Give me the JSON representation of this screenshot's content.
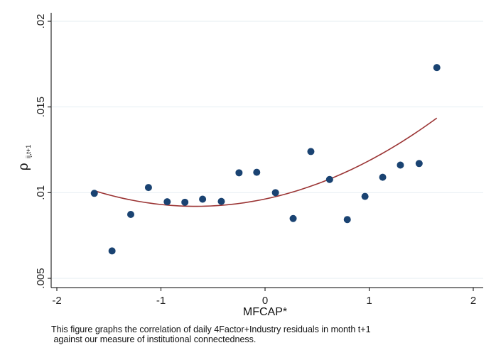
{
  "chart_data": {
    "type": "scatter",
    "xlabel": "MFCAP*",
    "ylabel_main": "ρ",
    "ylabel_sub": "ij,t+1",
    "xlim": [
      -2,
      2
    ],
    "ylim": [
      0.005,
      0.02
    ],
    "xticks": [
      -2,
      -1,
      0,
      1,
      2
    ],
    "xtick_labels": [
      "-2",
      "-1",
      "0",
      "1",
      "2"
    ],
    "yticks": [
      0.005,
      0.01,
      0.015,
      0.02
    ],
    "ytick_labels": [
      ".005",
      ".01",
      ".015",
      ".02"
    ],
    "grid": true,
    "points": [
      {
        "x": -1.64,
        "y": 0.00996
      },
      {
        "x": -1.47,
        "y": 0.0066
      },
      {
        "x": -1.29,
        "y": 0.00873
      },
      {
        "x": -1.12,
        "y": 0.0103
      },
      {
        "x": -0.94,
        "y": 0.00947
      },
      {
        "x": -0.77,
        "y": 0.00944
      },
      {
        "x": -0.6,
        "y": 0.00962
      },
      {
        "x": -0.42,
        "y": 0.00949
      },
      {
        "x": -0.25,
        "y": 0.01116
      },
      {
        "x": -0.08,
        "y": 0.01119
      },
      {
        "x": 0.1,
        "y": 0.01
      },
      {
        "x": 0.27,
        "y": 0.00849
      },
      {
        "x": 0.44,
        "y": 0.0124
      },
      {
        "x": 0.62,
        "y": 0.01077
      },
      {
        "x": 0.79,
        "y": 0.00843
      },
      {
        "x": 0.96,
        "y": 0.00978
      },
      {
        "x": 1.13,
        "y": 0.0109
      },
      {
        "x": 1.3,
        "y": 0.01161
      },
      {
        "x": 1.48,
        "y": 0.0117
      },
      {
        "x": 1.65,
        "y": 0.0173
      }
    ],
    "fit": {
      "type": "quadratic",
      "x_range": [
        -1.64,
        1.65
      ],
      "coefficients": {
        "a": 0.00096,
        "b": 0.00128,
        "c": 0.00963
      }
    },
    "colors": {
      "points": "#1a4372",
      "fit_line": "#9b3434",
      "grid": "#e6eef2",
      "axis": "#000000"
    }
  },
  "caption": {
    "line1": "This figure graphs the correlation of daily 4Factor+Industry residuals in month t+1",
    "line2": " against our measure of institutional connectedness."
  }
}
